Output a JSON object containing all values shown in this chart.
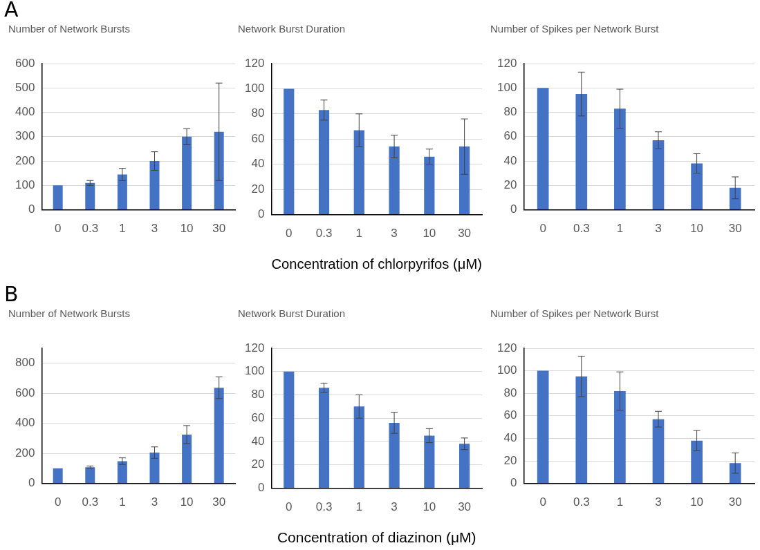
{
  "chart_data": [
    {
      "type": "bar",
      "title": "Number of Network Bursts",
      "annotations": [
        "A"
      ],
      "categories": [
        "0",
        "0.3",
        "1",
        "3",
        "10",
        "30"
      ],
      "values": [
        100,
        110,
        145,
        200,
        300,
        320
      ],
      "errors": [
        null,
        10,
        25,
        38,
        33,
        200
      ],
      "color": "#4472c4",
      "ylim": [
        0,
        600
      ],
      "yticks": [
        0,
        100,
        200,
        300,
        400,
        500,
        600
      ],
      "grid": "y",
      "legend": false
    },
    {
      "type": "bar",
      "title": "Network Burst Duration",
      "xlabel": "Concentration of chlorpyrifos (μM)",
      "categories": [
        "0",
        "0.3",
        "1",
        "3",
        "10",
        "30"
      ],
      "values": [
        100,
        83,
        67,
        54,
        46,
        54
      ],
      "errors": [
        null,
        8,
        13,
        9,
        6,
        22
      ],
      "color": "#4472c4",
      "ylim": [
        0,
        120
      ],
      "yticks": [
        0,
        20,
        40,
        60,
        80,
        100,
        120
      ],
      "grid": "y",
      "legend": false
    },
    {
      "type": "bar",
      "title": "Number of Spikes per Network Burst",
      "categories": [
        "0",
        "0.3",
        "1",
        "3",
        "10",
        "30"
      ],
      "values": [
        100,
        95,
        83,
        57,
        38,
        18
      ],
      "errors": [
        null,
        18,
        16,
        7,
        8,
        9
      ],
      "color": "#4472c4",
      "ylim": [
        0,
        120
      ],
      "yticks": [
        0,
        20,
        40,
        60,
        80,
        100,
        120
      ],
      "grid": "y",
      "legend": false
    },
    {
      "type": "bar",
      "title": "Number of Network Bursts",
      "annotations": [
        "B"
      ],
      "categories": [
        "0",
        "0.3",
        "1",
        "3",
        "10",
        "30"
      ],
      "values": [
        100,
        108,
        148,
        205,
        325,
        637
      ],
      "errors": [
        null,
        8,
        22,
        38,
        60,
        72
      ],
      "color": "#4472c4",
      "ylim": [
        0,
        900
      ],
      "yticks": [
        0,
        200,
        400,
        600,
        800
      ],
      "grid": "y",
      "legend": false
    },
    {
      "type": "bar",
      "title": "Network Burst Duration",
      "xlabel": "Concentration of diazinon (μM)",
      "categories": [
        "0",
        "0.3",
        "1",
        "3",
        "10",
        "30"
      ],
      "values": [
        100,
        86,
        70,
        56,
        45,
        38
      ],
      "errors": [
        null,
        4,
        10,
        9,
        6,
        5
      ],
      "color": "#4472c4",
      "ylim": [
        0,
        120
      ],
      "yticks": [
        0,
        20,
        40,
        60,
        80,
        100,
        120
      ],
      "grid": "y",
      "legend": false
    },
    {
      "type": "bar",
      "title": "Number of Spikes per Network Burst",
      "categories": [
        "0",
        "0.3",
        "1",
        "3",
        "10",
        "30"
      ],
      "values": [
        100,
        95,
        82,
        57,
        38,
        18
      ],
      "errors": [
        null,
        18,
        17,
        7,
        9,
        9
      ],
      "color": "#4472c4",
      "ylim": [
        0,
        120
      ],
      "yticks": [
        0,
        20,
        40,
        60,
        80,
        100,
        120
      ],
      "grid": "y",
      "legend": false
    }
  ]
}
